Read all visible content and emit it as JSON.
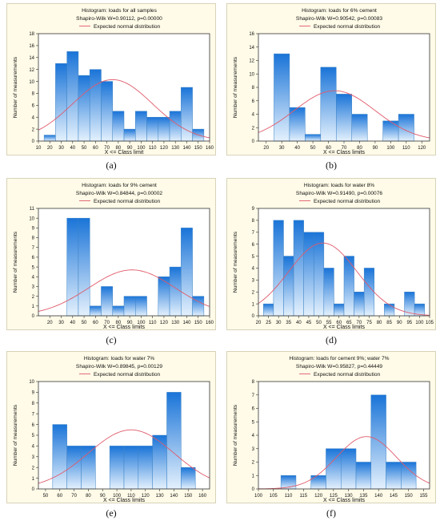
{
  "chart_data": [
    {
      "type": "bar",
      "caption": "(a)",
      "title": "Histogram: loads for all samples",
      "subtitle": "Shapiro-Wilk W=0.90112, p=0.00000",
      "legend": "Expected normal distribution",
      "xlabel": "X <= Class limit",
      "ylabel": "Number of measurements",
      "xlim": [
        10,
        160
      ],
      "ylim": [
        0,
        18
      ],
      "xticks": [
        10,
        20,
        30,
        40,
        50,
        60,
        70,
        80,
        90,
        100,
        110,
        120,
        130,
        140,
        150,
        160
      ],
      "yticks": [
        0,
        2,
        4,
        6,
        8,
        10,
        12,
        14,
        16,
        18
      ],
      "bin_width": 10,
      "bins": [
        {
          "x": 20,
          "value": 1
        },
        {
          "x": 30,
          "value": 13
        },
        {
          "x": 40,
          "value": 15
        },
        {
          "x": 50,
          "value": 11
        },
        {
          "x": 60,
          "value": 12
        },
        {
          "x": 70,
          "value": 10
        },
        {
          "x": 80,
          "value": 5
        },
        {
          "x": 90,
          "value": 2
        },
        {
          "x": 100,
          "value": 5
        },
        {
          "x": 110,
          "value": 4
        },
        {
          "x": 120,
          "value": 4
        },
        {
          "x": 130,
          "value": 5
        },
        {
          "x": 140,
          "value": 9
        },
        {
          "x": 150,
          "value": 2
        }
      ],
      "normal_curve": {
        "mean": 75,
        "sd": 35,
        "peak": 10.3
      }
    },
    {
      "type": "bar",
      "caption": "(b)",
      "title": "Histogram: loads for 6% cement",
      "subtitle": "Shapiro-Wilk W=0.90542, p=0.00083",
      "legend": "Expected normal distribution",
      "xlabel": "X <= Class limits",
      "ylabel": "Number of measurements",
      "xlim": [
        15,
        125
      ],
      "ylim": [
        0,
        16
      ],
      "xticks": [
        20,
        30,
        40,
        50,
        60,
        70,
        80,
        90,
        100,
        110,
        120
      ],
      "yticks": [
        0,
        2,
        4,
        6,
        8,
        10,
        12,
        14,
        16
      ],
      "bin_width": 10,
      "bins": [
        {
          "x": 30,
          "value": 13
        },
        {
          "x": 40,
          "value": 5
        },
        {
          "x": 50,
          "value": 1
        },
        {
          "x": 60,
          "value": 11
        },
        {
          "x": 70,
          "value": 7
        },
        {
          "x": 80,
          "value": 4
        },
        {
          "x": 100,
          "value": 3
        },
        {
          "x": 110,
          "value": 4
        }
      ],
      "normal_curve": {
        "mean": 64,
        "sd": 26,
        "peak": 7.5
      }
    },
    {
      "type": "bar",
      "caption": "(c)",
      "title": "Histogram: loads for 9% cement",
      "subtitle": "Shapiro-Wilk W=0.84844, p=0.00002",
      "legend": "Expected normal distribution",
      "xlabel": "X <= Class limits",
      "ylabel": "Number of measurements",
      "xlim": [
        10,
        160
      ],
      "ylim": [
        0,
        11
      ],
      "xticks": [
        20,
        30,
        40,
        50,
        60,
        70,
        80,
        90,
        100,
        110,
        120,
        130,
        140,
        150,
        160
      ],
      "yticks": [
        0,
        1,
        2,
        3,
        4,
        5,
        6,
        7,
        8,
        9,
        10,
        11
      ],
      "bin_width": 10,
      "bins": [
        {
          "x": 40,
          "value": 10
        },
        {
          "x": 50,
          "value": 10
        },
        {
          "x": 60,
          "value": 1
        },
        {
          "x": 70,
          "value": 3
        },
        {
          "x": 80,
          "value": 1
        },
        {
          "x": 90,
          "value": 2
        },
        {
          "x": 100,
          "value": 2
        },
        {
          "x": 120,
          "value": 4
        },
        {
          "x": 130,
          "value": 5
        },
        {
          "x": 140,
          "value": 9
        },
        {
          "x": 150,
          "value": 2
        }
      ],
      "normal_curve": {
        "mean": 92,
        "sd": 38,
        "peak": 4.7
      }
    },
    {
      "type": "bar",
      "caption": "(d)",
      "title": "Histogram: loads for water 8%",
      "subtitle": "Shapiro-Wilk W=0.91490, p=0.00076",
      "legend": "Expected normal distribution",
      "xlabel": "X <= Class limits",
      "ylabel": "Number of measurements",
      "xlim": [
        20,
        105
      ],
      "ylim": [
        0,
        9
      ],
      "xticks": [
        20,
        25,
        30,
        35,
        40,
        45,
        50,
        55,
        60,
        65,
        70,
        75,
        80,
        85,
        90,
        95,
        100,
        105
      ],
      "yticks": [
        0,
        1,
        2,
        3,
        4,
        5,
        6,
        7,
        8,
        9
      ],
      "bin_width": 5,
      "bins": [
        {
          "x": 25,
          "value": 1
        },
        {
          "x": 30,
          "value": 8
        },
        {
          "x": 35,
          "value": 5
        },
        {
          "x": 40,
          "value": 8
        },
        {
          "x": 45,
          "value": 7
        },
        {
          "x": 50,
          "value": 7
        },
        {
          "x": 55,
          "value": 4
        },
        {
          "x": 60,
          "value": 1
        },
        {
          "x": 65,
          "value": 5
        },
        {
          "x": 70,
          "value": 2
        },
        {
          "x": 75,
          "value": 4
        },
        {
          "x": 85,
          "value": 1
        },
        {
          "x": 95,
          "value": 2
        },
        {
          "x": 100,
          "value": 1
        }
      ],
      "normal_curve": {
        "mean": 52,
        "sd": 17,
        "peak": 6.1
      }
    },
    {
      "type": "bar",
      "caption": "(e)",
      "title": "Histogram: loads for water 7%",
      "subtitle": "Shapiro-Wilk W=0.89845, p=0.00129",
      "legend": "Expected normal distribution",
      "xlabel": "X <= Class limits",
      "ylabel": "Number of measurements",
      "xlim": [
        45,
        165
      ],
      "ylim": [
        0,
        10
      ],
      "xticks": [
        50,
        60,
        70,
        80,
        90,
        100,
        110,
        120,
        130,
        140,
        150,
        160
      ],
      "yticks": [
        0,
        1,
        2,
        3,
        4,
        5,
        6,
        7,
        8,
        9,
        10
      ],
      "bin_width": 10,
      "bins": [
        {
          "x": 60,
          "value": 6
        },
        {
          "x": 70,
          "value": 4
        },
        {
          "x": 80,
          "value": 4
        },
        {
          "x": 100,
          "value": 4
        },
        {
          "x": 110,
          "value": 4
        },
        {
          "x": 120,
          "value": 4
        },
        {
          "x": 130,
          "value": 5
        },
        {
          "x": 140,
          "value": 9
        },
        {
          "x": 150,
          "value": 2
        }
      ],
      "normal_curve": {
        "mean": 110,
        "sd": 30,
        "peak": 5.5
      }
    },
    {
      "type": "bar",
      "caption": "(f)",
      "title": "Histogram: loads for cement 9%; water 7%",
      "subtitle": "Shapiro-Wilk W=0.95827, p=0.44449",
      "legend": "Expected normal distribution",
      "xlabel": "X <= Class limits",
      "ylabel": "Number of measurements",
      "xlim": [
        100,
        157
      ],
      "ylim": [
        0,
        8
      ],
      "xticks": [
        100,
        105,
        110,
        115,
        120,
        125,
        130,
        135,
        140,
        145,
        150,
        155
      ],
      "yticks": [
        0,
        1,
        2,
        3,
        4,
        5,
        6,
        7,
        8
      ],
      "bin_width": 5,
      "bins": [
        {
          "x": 110,
          "value": 1
        },
        {
          "x": 120,
          "value": 1
        },
        {
          "x": 125,
          "value": 3
        },
        {
          "x": 130,
          "value": 3
        },
        {
          "x": 135,
          "value": 2
        },
        {
          "x": 140,
          "value": 7
        },
        {
          "x": 145,
          "value": 2
        },
        {
          "x": 150,
          "value": 2
        }
      ],
      "normal_curve": {
        "mean": 136,
        "sd": 10,
        "peak": 3.9
      }
    }
  ],
  "colors": {
    "frame_bg": "#fffbe8",
    "frame_border": "#d8d2b8",
    "plot_bg": "#ffffff",
    "bar_top": "#1a74d8",
    "bar_bottom": "#e4f1fd",
    "bar_stroke": "#3b82c4",
    "curve": "#e05a6a",
    "axis": "#333333"
  }
}
